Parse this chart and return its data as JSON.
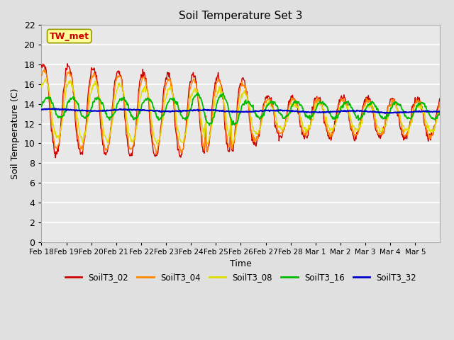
{
  "title": "Soil Temperature Set 3",
  "xlabel": "Time",
  "ylabel": "Soil Temperature (C)",
  "ylim": [
    0,
    22
  ],
  "yticks": [
    0,
    2,
    4,
    6,
    8,
    10,
    12,
    14,
    16,
    18,
    20,
    22
  ],
  "background_color": "#e0e0e0",
  "plot_bg_color": "#e8e8e8",
  "grid_color": "white",
  "annotation_text": "TW_met",
  "annotation_color": "#cc0000",
  "annotation_bg": "#ffff99",
  "annotation_border": "#999900",
  "series_colors": {
    "SoilT3_02": "#cc0000",
    "SoilT3_04": "#ff8800",
    "SoilT3_08": "#dddd00",
    "SoilT3_16": "#00bb00",
    "SoilT3_32": "#0000cc"
  },
  "xtick_labels": [
    "Feb 18",
    "Feb 19",
    "Feb 20",
    "Feb 21",
    "Feb 22",
    "Feb 23",
    "Feb 24",
    "Feb 25",
    "Feb 26",
    "Feb 27",
    "Feb 28",
    "Mar 1",
    "Mar 2",
    "Mar 3",
    "Mar 4",
    "Mar 5"
  ],
  "legend_labels": [
    "SoilT3_02",
    "SoilT3_04",
    "SoilT3_08",
    "SoilT3_16",
    "SoilT3_32"
  ],
  "figsize": [
    6.4,
    4.8
  ],
  "dpi": 100
}
